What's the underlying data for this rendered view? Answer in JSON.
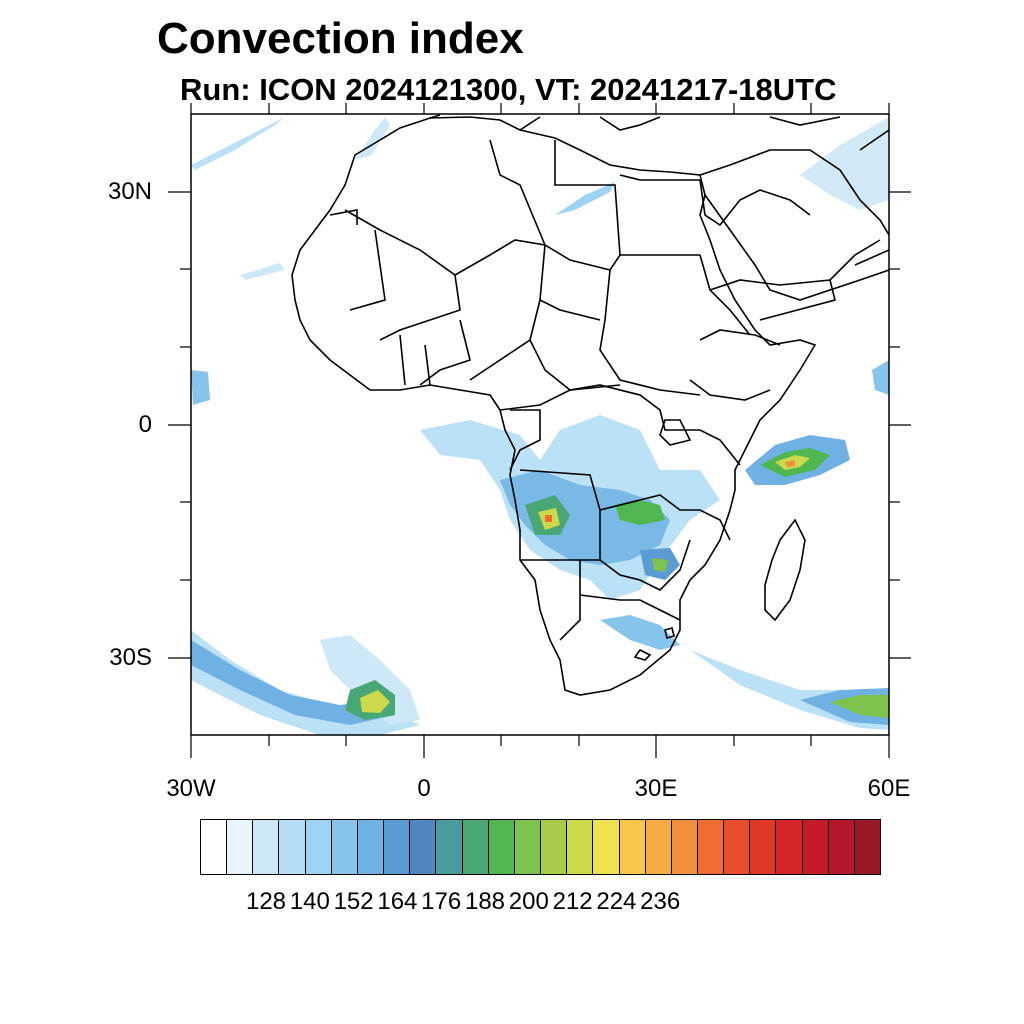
{
  "title": "Convection index",
  "subtitle": "Run: ICON 2024121300,  VT: 20241217-18UTC",
  "map": {
    "region": "Africa",
    "lat_range": [
      -40,
      40
    ],
    "lon_range": [
      -30,
      60
    ],
    "lat_ticks": [
      {
        "value": 30,
        "label": "30N"
      },
      {
        "value": 0,
        "label": "0"
      },
      {
        "value": -30,
        "label": "30S"
      }
    ],
    "lon_ticks": [
      {
        "value": -30,
        "label": "30W"
      },
      {
        "value": 0,
        "label": "0"
      },
      {
        "value": 30,
        "label": "30E"
      },
      {
        "value": 60,
        "label": "60E"
      }
    ]
  },
  "colorbar": {
    "colors": [
      "#ffffff",
      "#e8f4fc",
      "#cde8f7",
      "#b4def5",
      "#9dd4f3",
      "#86c4ec",
      "#6fb1e2",
      "#5a9bd3",
      "#4d86c0",
      "#4a9c9c",
      "#48a774",
      "#4fb650",
      "#7dc24a",
      "#a8cb48",
      "#ccd94a",
      "#f0e14f",
      "#f7c74a",
      "#f5ad43",
      "#f28f3a",
      "#ee6c2f",
      "#e94e2a",
      "#e03728",
      "#d52528",
      "#c51b29",
      "#b3182a",
      "#9c1725"
    ],
    "labels": [
      "128",
      "140",
      "152",
      "164",
      "176",
      "188",
      "200",
      "212",
      "224",
      "236"
    ]
  }
}
